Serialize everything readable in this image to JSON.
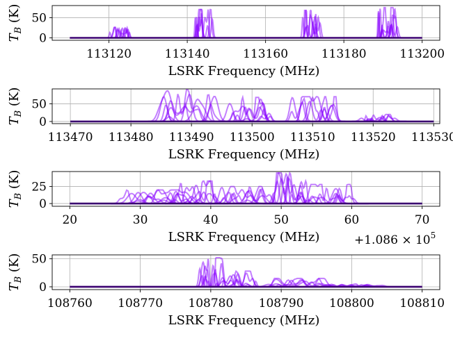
{
  "chart_data": [
    {
      "type": "line",
      "xlabel": "LSRK Frequency (MHz)",
      "ylabel": "T_B (K)",
      "x_offset_label": "",
      "xlim": [
        113105.5,
        113204.5
      ],
      "ylim": [
        -6,
        80
      ],
      "xticks": [
        113120,
        113140,
        113160,
        113180,
        113200
      ],
      "xtick_labels": [
        "113120",
        "113140",
        "113160",
        "113180",
        "113200"
      ],
      "yticks": [
        0,
        50
      ],
      "ytick_labels": [
        "0",
        "50"
      ],
      "baseline_range": [
        113110,
        113200
      ],
      "line_groups": [
        {
          "center": 113123,
          "width": 4,
          "peak": 26
        },
        {
          "center": 113144,
          "width": 4,
          "peak": 70
        },
        {
          "center": 113171,
          "width": 4,
          "peak": 68
        },
        {
          "center": 113191,
          "width": 4,
          "peak": 75
        }
      ],
      "grid": true,
      "line_color": "#8800ff",
      "baseline_color": "#3a0070"
    },
    {
      "type": "line",
      "xlabel": "LSRK Frequency (MHz)",
      "ylabel": "T_B (K)",
      "x_offset_label": "",
      "xlim": [
        113467,
        113531
      ],
      "ylim": [
        -6,
        92
      ],
      "xticks": [
        113470,
        113480,
        113490,
        113500,
        113510,
        113520,
        113530
      ],
      "xtick_labels": [
        "113470",
        "113480",
        "113490",
        "113500",
        "113510",
        "113520",
        "113530"
      ],
      "yticks": [
        0,
        50
      ],
      "ytick_labels": [
        "0",
        "50"
      ],
      "baseline_range": [
        113470,
        113530
      ],
      "line_groups": [
        {
          "center": 113490,
          "width": 8,
          "peak": 90
        },
        {
          "center": 113500,
          "width": 6,
          "peak": 68
        },
        {
          "center": 113510,
          "width": 6,
          "peak": 70
        },
        {
          "center": 113521,
          "width": 5,
          "peak": 20
        }
      ],
      "grid": true,
      "line_color": "#8800ff",
      "baseline_color": "#3a0070"
    },
    {
      "type": "line",
      "xlabel": "LSRK Frequency (MHz)",
      "ylabel": "T_B (K)",
      "x_offset_label": "+1.086 × 10^5",
      "xlim": [
        17.5,
        72.5
      ],
      "ylim": [
        -4,
        47
      ],
      "xticks": [
        20,
        30,
        40,
        50,
        60,
        70
      ],
      "xtick_labels": [
        "20",
        "30",
        "40",
        "50",
        "60",
        "70"
      ],
      "yticks": [
        0,
        25
      ],
      "ytick_labels": [
        "0",
        "25"
      ],
      "baseline_range": [
        20,
        70
      ],
      "line_groups": [
        {
          "center": 33,
          "width": 8,
          "peak": 20
        },
        {
          "center": 38,
          "width": 5,
          "peak": 33
        },
        {
          "center": 45,
          "width": 6,
          "peak": 25
        },
        {
          "center": 51,
          "width": 4,
          "peak": 45
        },
        {
          "center": 57,
          "width": 6,
          "peak": 28
        }
      ],
      "grid": true,
      "line_color": "#8800ff",
      "baseline_color": "#3a0070"
    },
    {
      "type": "line",
      "xlabel": "LSRK Frequency (MHz)",
      "ylabel": "T_B (K)",
      "x_offset_label": "",
      "xlim": [
        108757.5,
        108812.5
      ],
      "ylim": [
        -5,
        57
      ],
      "xticks": [
        108760,
        108770,
        108780,
        108790,
        108800,
        108810
      ],
      "xtick_labels": [
        "108760",
        "108770",
        "108780",
        "108790",
        "108800",
        "108810"
      ],
      "yticks": [
        0,
        50
      ],
      "ytick_labels": [
        "0",
        "50"
      ],
      "baseline_range": [
        108760,
        108810
      ],
      "line_groups": [
        {
          "center": 108780,
          "width": 3,
          "peak": 52
        },
        {
          "center": 108784,
          "width": 4,
          "peak": 28
        },
        {
          "center": 108793,
          "width": 7,
          "peak": 15
        },
        {
          "center": 108800,
          "width": 6,
          "peak": 5
        }
      ],
      "grid": true,
      "line_color": "#8800ff",
      "baseline_color": "#3a0070"
    }
  ]
}
